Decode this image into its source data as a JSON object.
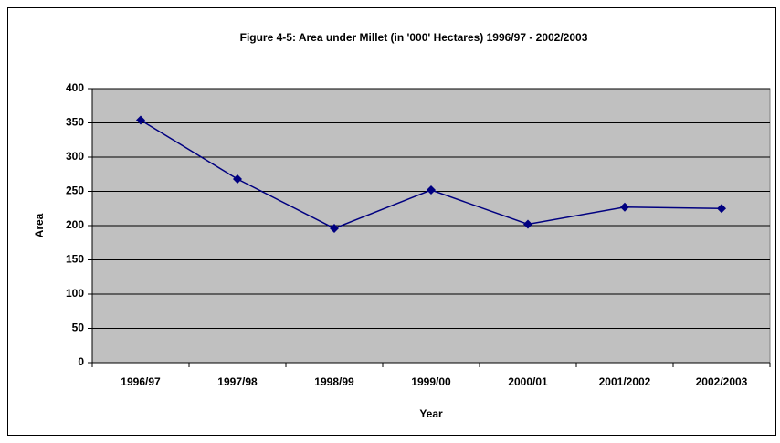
{
  "chart_data": {
    "type": "line",
    "title": "Figure 4-5: Area under Millet (in '000' Hectares) 1996/97 - 2002/2003",
    "x_label": "Year",
    "y_label": "Area",
    "categories": [
      "1996/97",
      "1997/98",
      "1998/99",
      "1999/00",
      "2000/01",
      "2001/2002",
      "2002/2003"
    ],
    "values": [
      354,
      268,
      196,
      252,
      202,
      227,
      225
    ],
    "color": "#000080",
    "ylim": [
      0,
      400
    ],
    "yticks": [
      0,
      50,
      100,
      150,
      200,
      250,
      300,
      350,
      400
    ],
    "grid": true,
    "plot_background": "#c0c0c0"
  }
}
